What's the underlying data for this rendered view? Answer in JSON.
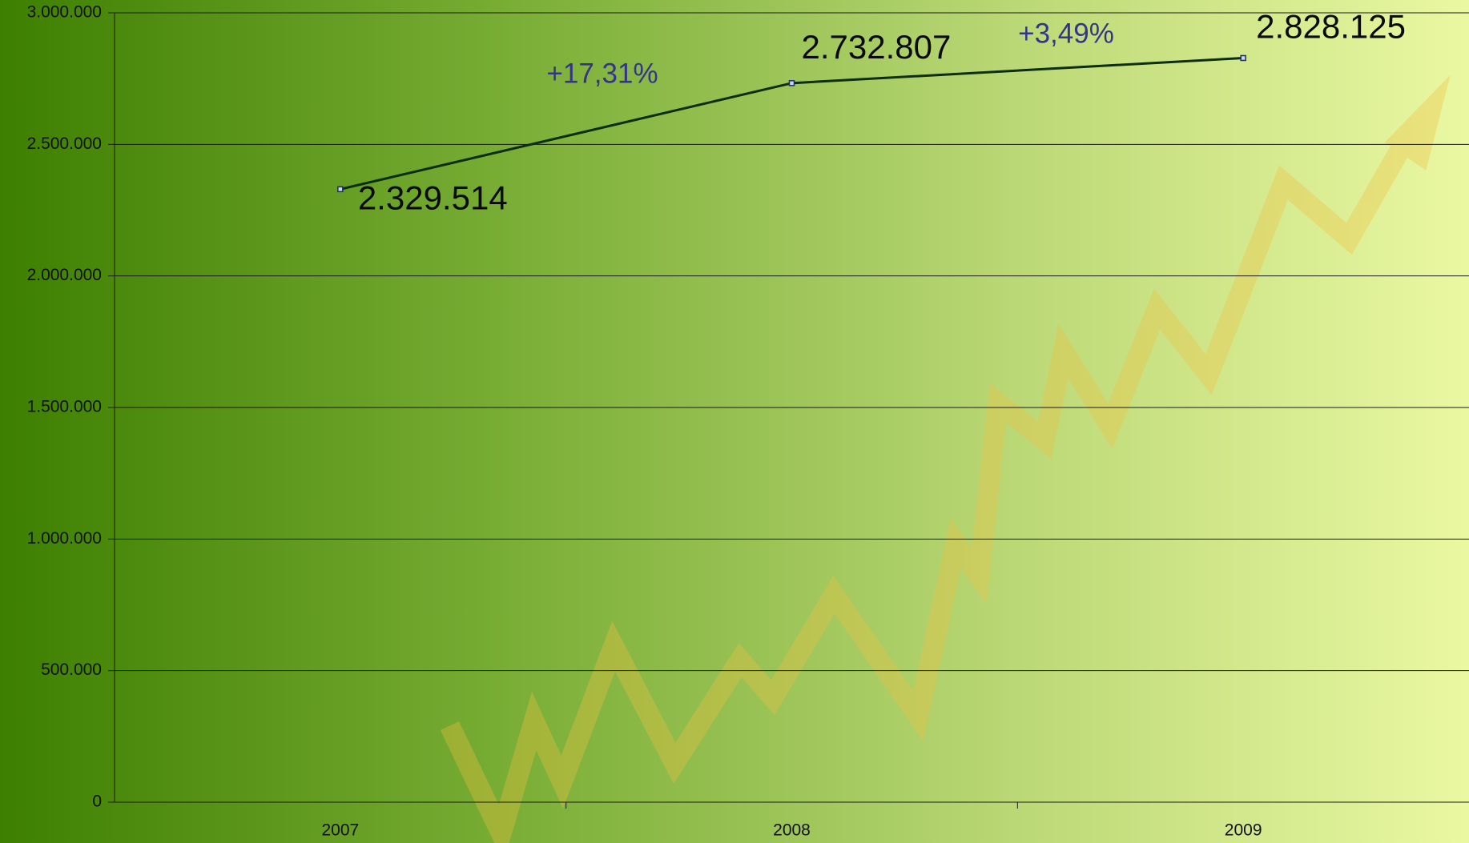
{
  "chart_data": {
    "type": "line",
    "categories": [
      "2007",
      "2008",
      "2009"
    ],
    "series": [
      {
        "name": null,
        "color": "#0d2e0d",
        "values": [
          2329514,
          2732807,
          2828125
        ],
        "value_labels": [
          "2.329.514",
          "2.732.807",
          "2.828.125"
        ]
      }
    ],
    "annotations": [
      "+17,31%",
      "+3,49%"
    ],
    "ylim": [
      0,
      3000000
    ],
    "yticks": [
      0,
      {
        "value": 500000,
        "label": "500.000"
      },
      {
        "value": 1000000,
        "label": "1.000.000"
      },
      {
        "value": 1500000,
        "label": "1.500.000"
      },
      {
        "value": 2000000,
        "label": "2.000.000"
      },
      {
        "value": 2500000,
        "label": "2.500.000"
      },
      {
        "value": 3000000,
        "label": "3.000.000"
      }
    ],
    "grid": true
  }
}
